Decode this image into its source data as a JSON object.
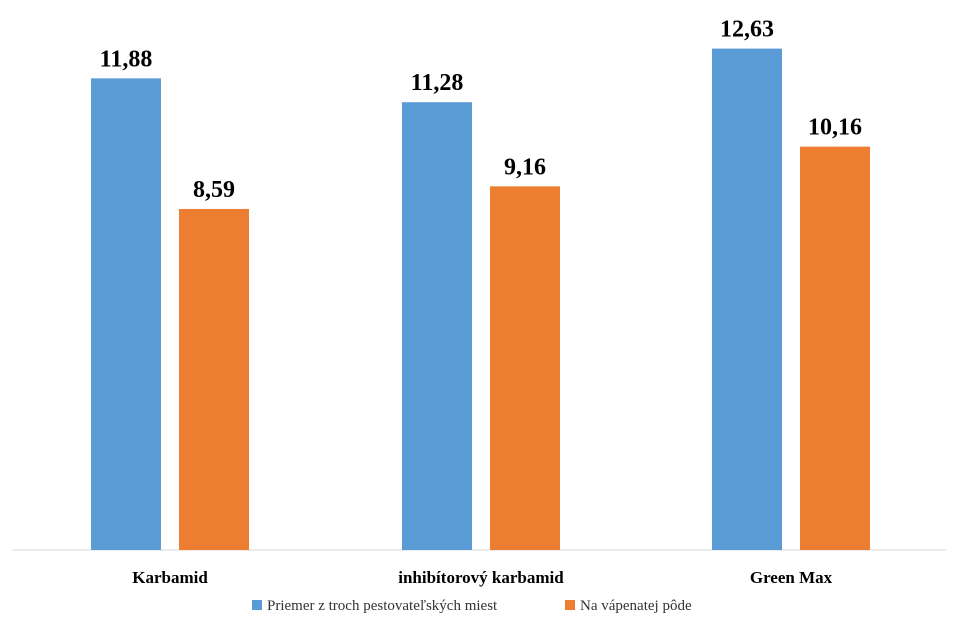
{
  "chart_data": {
    "type": "bar",
    "categories": [
      "Karbamid",
      "inhibítorový karbamid",
      "Green Max"
    ],
    "series": [
      {
        "name": "Priemer z troch pestovateľských miest",
        "color": "#5B9BD5",
        "values": [
          11.88,
          11.28,
          12.63
        ],
        "labels": [
          "11,88",
          "11,28",
          "12,63"
        ]
      },
      {
        "name": "Na vápenatej pôde",
        "color": "#ED7D31",
        "values": [
          8.59,
          9.16,
          10.16
        ],
        "labels": [
          "8,59",
          "9,16",
          "10,16"
        ]
      }
    ],
    "ylim": [
      0,
      13.3
    ],
    "grid": false,
    "legend": "bottom"
  }
}
